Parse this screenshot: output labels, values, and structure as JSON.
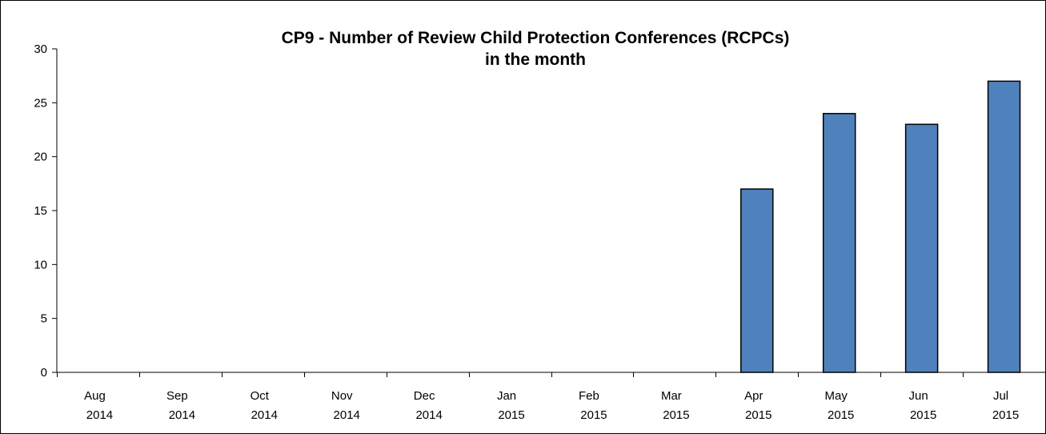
{
  "chart_data": {
    "type": "bar",
    "title": "CP9 - Number of Review Child Protection Conferences (RCPCs)",
    "subtitle": "in the month",
    "xlabel": "",
    "ylabel": "",
    "categories": [
      {
        "month": "Aug",
        "year": "2014"
      },
      {
        "month": "Sep",
        "year": "2014"
      },
      {
        "month": "Oct",
        "year": "2014"
      },
      {
        "month": "Nov",
        "year": "2014"
      },
      {
        "month": "Dec",
        "year": "2014"
      },
      {
        "month": "Jan",
        "year": "2015"
      },
      {
        "month": "Feb",
        "year": "2015"
      },
      {
        "month": "Mar",
        "year": "2015"
      },
      {
        "month": "Apr",
        "year": "2015"
      },
      {
        "month": "May",
        "year": "2015"
      },
      {
        "month": "Jun",
        "year": "2015"
      },
      {
        "month": "Jul",
        "year": "2015"
      }
    ],
    "values": [
      0,
      0,
      0,
      0,
      0,
      0,
      0,
      0,
      17,
      24,
      23,
      27
    ],
    "ylim": [
      0,
      30
    ],
    "yticks": [
      "0",
      "5",
      "10",
      "15",
      "20",
      "25",
      "30"
    ],
    "grid": false,
    "legend": "none",
    "bar_color": "#4F81BD",
    "bar_border_color": "#000000"
  }
}
